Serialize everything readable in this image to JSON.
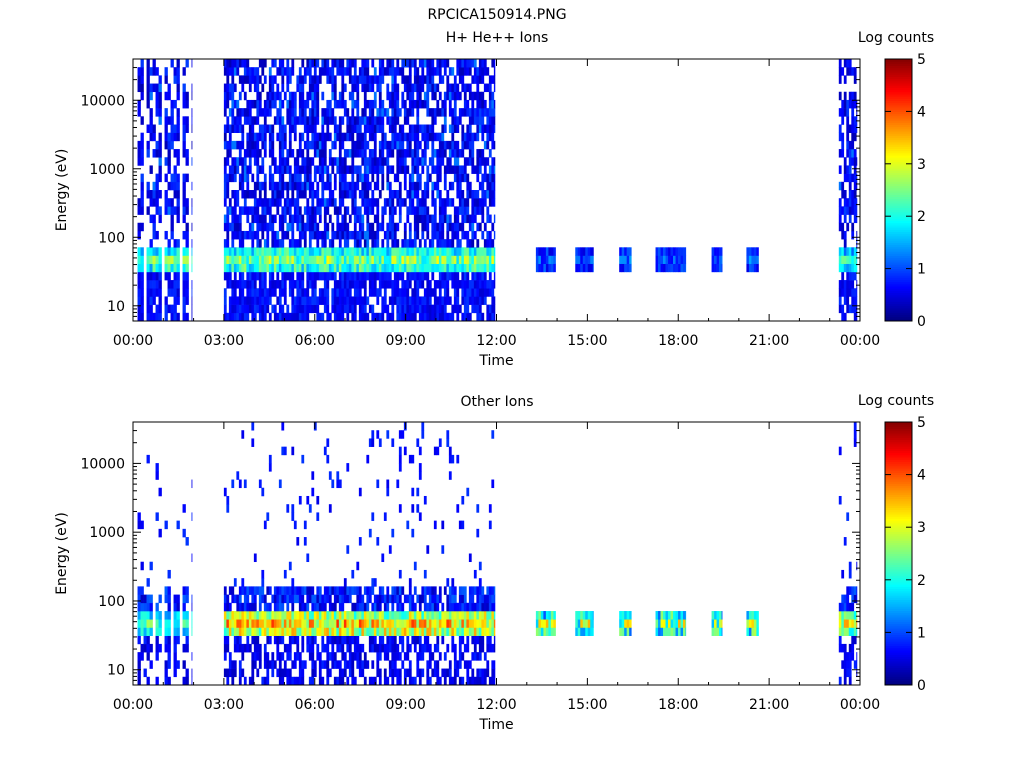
{
  "page_title": "RPCICA150914.PNG",
  "chart_data": [
    {
      "type": "heatmap",
      "title": "H+ He++ Ions",
      "xlabel": "Time",
      "ylabel": "Energy (eV)",
      "x_ticks": [
        "00:00",
        "03:00",
        "06:00",
        "09:00",
        "12:00",
        "15:00",
        "18:00",
        "21:00",
        "00:00"
      ],
      "x_range_hours": [
        0,
        24
      ],
      "y_scale": "log",
      "y_ticks": [
        10,
        100,
        1000,
        10000
      ],
      "y_tick_labels": [
        "10",
        "100",
        "1000",
        "10000"
      ],
      "y_range": [
        6,
        40000
      ],
      "colorbar": {
        "label": "Log counts",
        "min": 0,
        "max": 5,
        "ticks": [
          "0",
          "1",
          "2",
          "3",
          "4",
          "5"
        ],
        "colormap": "jet"
      },
      "data_segments_hours": [
        {
          "start": 0.15,
          "end": 1.95,
          "type": "burst",
          "peak_energy_eV": 40,
          "peak_log_counts": 3.0
        },
        {
          "start": 3.0,
          "end": 11.95,
          "type": "continuous",
          "peak_energy_eV": 40,
          "peak_log_counts": 3.2
        },
        {
          "start": 13.3,
          "end": 13.95,
          "type": "narrow",
          "peak_energy_eV": 40,
          "peak_log_counts": 1.5
        },
        {
          "start": 14.6,
          "end": 15.2,
          "type": "narrow",
          "peak_energy_eV": 40,
          "peak_log_counts": 1.5
        },
        {
          "start": 16.05,
          "end": 16.45,
          "type": "narrow",
          "peak_energy_eV": 40,
          "peak_log_counts": 1.5
        },
        {
          "start": 17.25,
          "end": 18.25,
          "type": "narrow",
          "peak_energy_eV": 40,
          "peak_log_counts": 1.5
        },
        {
          "start": 19.1,
          "end": 19.45,
          "type": "narrow",
          "peak_energy_eV": 40,
          "peak_log_counts": 1.5
        },
        {
          "start": 20.25,
          "end": 20.65,
          "type": "narrow",
          "peak_energy_eV": 40,
          "peak_log_counts": 1.5
        },
        {
          "start": 23.3,
          "end": 23.9,
          "type": "continuous",
          "peak_energy_eV": 40,
          "peak_log_counts": 2.5
        }
      ]
    },
    {
      "type": "heatmap",
      "title": "Other Ions",
      "xlabel": "Time",
      "ylabel": "Energy (eV)",
      "x_ticks": [
        "00:00",
        "03:00",
        "06:00",
        "09:00",
        "12:00",
        "15:00",
        "18:00",
        "21:00",
        "00:00"
      ],
      "x_range_hours": [
        0,
        24
      ],
      "y_scale": "log",
      "y_ticks": [
        10,
        100,
        1000,
        10000
      ],
      "y_tick_labels": [
        "10",
        "100",
        "1000",
        "10000"
      ],
      "y_range": [
        6,
        40000
      ],
      "colorbar": {
        "label": "Log counts",
        "min": 0,
        "max": 5,
        "ticks": [
          "0",
          "1",
          "2",
          "3",
          "4",
          "5"
        ],
        "colormap": "jet"
      },
      "data_segments_hours": [
        {
          "start": 0.15,
          "end": 1.95,
          "type": "burst",
          "peak_energy_eV": 40,
          "peak_log_counts": 2.8
        },
        {
          "start": 3.0,
          "end": 11.95,
          "type": "continuous",
          "peak_energy_eV": 40,
          "peak_log_counts": 4.3
        },
        {
          "start": 13.3,
          "end": 13.95,
          "type": "narrow",
          "peak_energy_eV": 40,
          "peak_log_counts": 3.6
        },
        {
          "start": 14.6,
          "end": 15.2,
          "type": "narrow",
          "peak_energy_eV": 40,
          "peak_log_counts": 3.6
        },
        {
          "start": 16.05,
          "end": 16.45,
          "type": "narrow",
          "peak_energy_eV": 40,
          "peak_log_counts": 3.6
        },
        {
          "start": 17.25,
          "end": 18.25,
          "type": "narrow",
          "peak_energy_eV": 40,
          "peak_log_counts": 3.6
        },
        {
          "start": 19.1,
          "end": 19.45,
          "type": "narrow",
          "peak_energy_eV": 40,
          "peak_log_counts": 3.6
        },
        {
          "start": 20.25,
          "end": 20.65,
          "type": "narrow",
          "peak_energy_eV": 40,
          "peak_log_counts": 3.6
        },
        {
          "start": 23.3,
          "end": 23.9,
          "type": "continuous",
          "peak_energy_eV": 40,
          "peak_log_counts": 3.8
        }
      ]
    }
  ]
}
